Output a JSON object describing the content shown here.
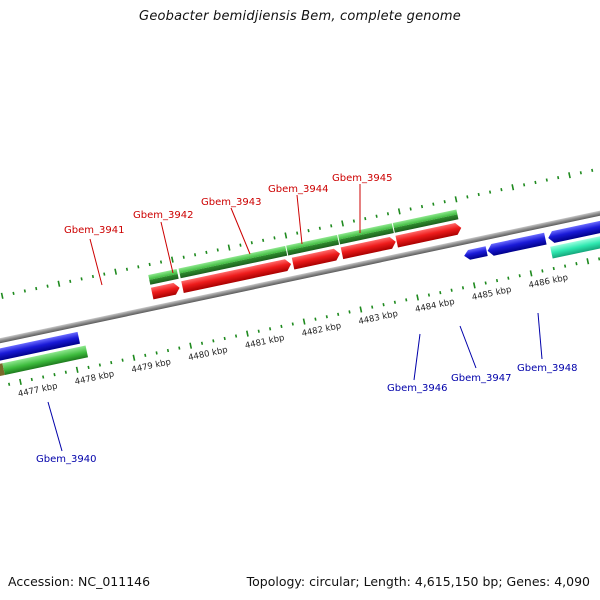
{
  "title": "Geobacter bemidjiensis Bem, complete genome",
  "footer": {
    "accession": "Accession: NC_011146",
    "stats": "Topology: circular; Length: 4,615,150 bp; Genes: 4,090"
  },
  "colors": {
    "backbone": "#8c8c8c",
    "tick": "#1e8a1e",
    "red_gene": "#ee1c1c",
    "green_gene": "#3dbb3d",
    "blue_gene": "#1a1ad8",
    "aqua_gene": "#2ee8b0",
    "label_red": "#cc0000",
    "label_blue": "#0000aa"
  },
  "kbp_labels": [
    "4477 kbp",
    "4478 kbp",
    "4479 kbp",
    "4480 kbp",
    "4481 kbp",
    "4482 kbp",
    "4483 kbp",
    "4484 kbp",
    "4485 kbp",
    "4486 kbp"
  ],
  "gene_labels_top": [
    "Gbem_3941",
    "Gbem_3942",
    "Gbem_3943",
    "Gbem_3944",
    "Gbem_3945"
  ],
  "gene_labels_bottom": [
    "Gbem_3940",
    "Gbem_3946",
    "Gbem_3947",
    "Gbem_3948"
  ]
}
